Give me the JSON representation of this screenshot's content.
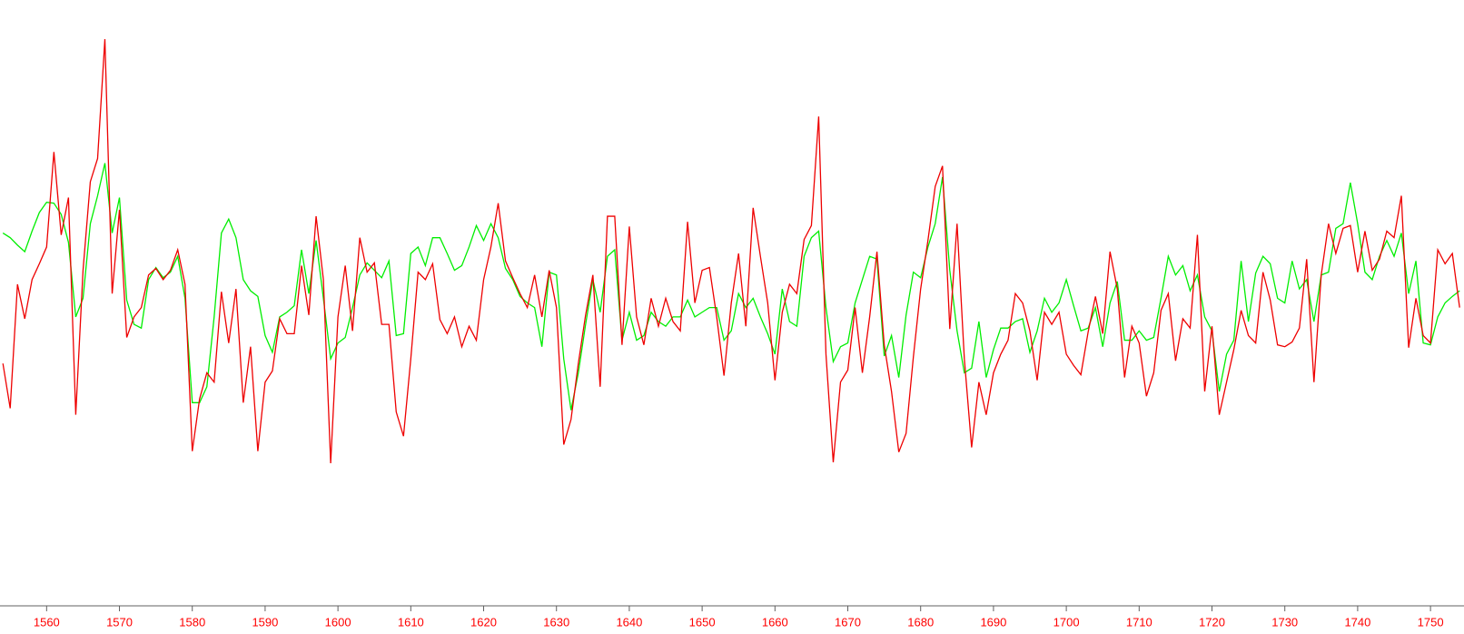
{
  "chart_data": {
    "type": "line",
    "x": [
      1554,
      1555,
      1556,
      1557,
      1558,
      1559,
      1560,
      1561,
      1562,
      1563,
      1564,
      1565,
      1566,
      1567,
      1568,
      1569,
      1570,
      1571,
      1572,
      1573,
      1574,
      1575,
      1576,
      1577,
      1578,
      1579,
      1580,
      1581,
      1582,
      1583,
      1584,
      1585,
      1586,
      1587,
      1588,
      1589,
      1590,
      1591,
      1592,
      1593,
      1594,
      1595,
      1596,
      1597,
      1598,
      1599,
      1600,
      1601,
      1602,
      1603,
      1604,
      1605,
      1606,
      1607,
      1608,
      1609,
      1610,
      1611,
      1612,
      1613,
      1614,
      1615,
      1616,
      1617,
      1618,
      1619,
      1620,
      1621,
      1622,
      1623,
      1624,
      1625,
      1626,
      1627,
      1628,
      1629,
      1630,
      1631,
      1632,
      1633,
      1634,
      1635,
      1636,
      1637,
      1638,
      1639,
      1640,
      1641,
      1642,
      1643,
      1644,
      1645,
      1646,
      1647,
      1648,
      1649,
      1650,
      1651,
      1652,
      1653,
      1654,
      1655,
      1656,
      1657,
      1658,
      1659,
      1660,
      1661,
      1662,
      1663,
      1664,
      1665,
      1666,
      1667,
      1668,
      1669,
      1670,
      1671,
      1672,
      1673,
      1674,
      1675,
      1676,
      1677,
      1678,
      1679,
      1680,
      1681,
      1682,
      1683,
      1684,
      1685,
      1686,
      1687,
      1688,
      1689,
      1690,
      1691,
      1692,
      1693,
      1694,
      1695,
      1696,
      1697,
      1698,
      1699,
      1700,
      1701,
      1702,
      1703,
      1704,
      1705,
      1706,
      1707,
      1708,
      1709,
      1710,
      1711,
      1712,
      1713,
      1714,
      1715,
      1716,
      1717,
      1718,
      1719,
      1720,
      1721,
      1722,
      1723,
      1724,
      1725,
      1726,
      1727,
      1728,
      1729,
      1730,
      1731,
      1732,
      1733,
      1734,
      1735,
      1736,
      1737,
      1738,
      1739,
      1740,
      1741,
      1742,
      1743,
      1744,
      1745,
      1746,
      1747,
      1748,
      1749,
      1750,
      1751,
      1752,
      1753,
      1754
    ],
    "series": [
      {
        "color": "#00ee00",
        "values": [
          400,
          395,
          387,
          380,
          402,
          422,
          433,
          432,
          420,
          390,
          310,
          330,
          410,
          440,
          475,
          400,
          438,
          328,
          302,
          298,
          350,
          363,
          352,
          358,
          375,
          330,
          218,
          218,
          235,
          310,
          400,
          415,
          395,
          350,
          338,
          332,
          290,
          272,
          310,
          315,
          322,
          382,
          335,
          392,
          330,
          265,
          282,
          288,
          320,
          355,
          368,
          360,
          352,
          370,
          290,
          292,
          378,
          385,
          365,
          395,
          395,
          378,
          360,
          365,
          385,
          408,
          392,
          410,
          395,
          362,
          350,
          332,
          325,
          320,
          278,
          358,
          355,
          265,
          210,
          250,
          302,
          350,
          315,
          375,
          382,
          285,
          315,
          285,
          290,
          315,
          305,
          300,
          310,
          310,
          328,
          310,
          315,
          320,
          320,
          285,
          295,
          335,
          320,
          330,
          310,
          292,
          270,
          340,
          305,
          300,
          375,
          395,
          402,
          320,
          262,
          278,
          282,
          325,
          350,
          375,
          372,
          268,
          290,
          245,
          312,
          358,
          352,
          385,
          410,
          460,
          360,
          295,
          250,
          255,
          305,
          245,
          275,
          298,
          298,
          305,
          308,
          272,
          295,
          330,
          315,
          325,
          350,
          322,
          295,
          298,
          320,
          278,
          325,
          348,
          285,
          285,
          295,
          285,
          288,
          330,
          375,
          355,
          365,
          338,
          355,
          310,
          295,
          230,
          270,
          285,
          370,
          305,
          357,
          375,
          367,
          330,
          325,
          370,
          340,
          350,
          305,
          355,
          358,
          405,
          410,
          454,
          410,
          358,
          350,
          375,
          392,
          375,
          400,
          335,
          370,
          282,
          280,
          310,
          325,
          332,
          338
        ]
      },
      {
        "color": "#ee0000",
        "values": [
          260,
          212,
          345,
          308,
          350,
          367,
          385,
          487,
          398,
          438,
          205,
          360,
          455,
          480,
          608,
          335,
          425,
          288,
          310,
          320,
          355,
          362,
          350,
          360,
          382,
          345,
          166,
          222,
          250,
          240,
          337,
          282,
          340,
          218,
          278,
          166,
          240,
          252,
          308,
          292,
          292,
          365,
          312,
          418,
          350,
          153,
          310,
          365,
          295,
          395,
          358,
          368,
          302,
          302,
          208,
          182,
          265,
          358,
          350,
          367,
          307,
          292,
          310,
          278,
          300,
          285,
          350,
          385,
          432,
          370,
          352,
          335,
          320,
          355,
          310,
          360,
          320,
          173,
          200,
          260,
          312,
          355,
          235,
          418,
          418,
          280,
          407,
          310,
          280,
          330,
          300,
          330,
          305,
          295,
          412,
          325,
          360,
          363,
          310,
          247,
          325,
          378,
          300,
          427,
          375,
          325,
          242,
          315,
          345,
          335,
          393,
          408,
          525,
          270,
          154,
          240,
          253,
          320,
          250,
          310,
          380,
          280,
          230,
          165,
          185,
          267,
          340,
          392,
          450,
          472,
          297,
          410,
          265,
          170,
          240,
          205,
          250,
          270,
          285,
          335,
          325,
          295,
          242,
          315,
          302,
          315,
          270,
          258,
          248,
          294,
          332,
          292,
          380,
          340,
          245,
          300,
          282,
          225,
          250,
          317,
          335,
          263,
          308,
          298,
          398,
          230,
          300,
          205,
          240,
          275,
          317,
          290,
          282,
          358,
          328,
          280,
          278,
          283,
          298,
          372,
          240,
          355,
          410,
          378,
          405,
          408,
          358,
          402,
          360,
          372,
          402,
          395,
          440,
          277,
          330,
          290,
          282,
          382,
          367,
          378,
          320
        ]
      }
    ],
    "xlim": [
      1553.6,
      1754.6
    ],
    "xticks": [
      1560,
      1570,
      1580,
      1590,
      1600,
      1610,
      1620,
      1630,
      1640,
      1650,
      1660,
      1670,
      1680,
      1690,
      1700,
      1710,
      1720,
      1730,
      1740,
      1750
    ],
    "ylim": [
      0,
      650
    ],
    "tick_color": "#ff0000",
    "axis_color": "#606060"
  }
}
